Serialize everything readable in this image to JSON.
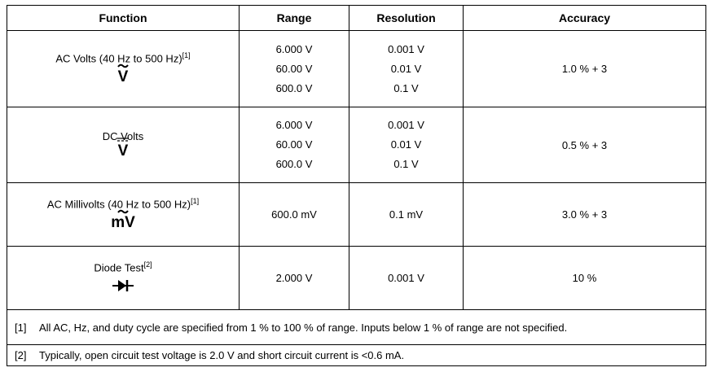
{
  "table": {
    "header": [
      "Function",
      "Range",
      "Resolution",
      "Accuracy"
    ],
    "rows": [
      {
        "function": "AC Volts (40 Hz to 500 Hz)",
        "note": "[1]",
        "symbol": "V",
        "ranges": [
          "6.000 V",
          "60.00 V",
          "600.0 V"
        ],
        "resolutions": [
          "0.001 V",
          "0.01 V",
          "0.1 V"
        ],
        "accuracy": "1.0 % + 3"
      },
      {
        "function": "DC Volts",
        "symbol": "V",
        "ranges": [
          "6.000 V",
          "60.00 V",
          "600.0 V"
        ],
        "resolutions": [
          "0.001 V",
          "0.01 V",
          "0.1 V"
        ],
        "accuracy": "0.5 % + 3"
      },
      {
        "function": "AC Millivolts (40 Hz to 500 Hz)",
        "note": "[1]",
        "symbol": "mV",
        "ranges": [
          "600.0 mV"
        ],
        "resolutions": [
          "0.1 mV"
        ],
        "accuracy": "3.0 % + 3"
      },
      {
        "function": "Diode Test",
        "note": "[2]",
        "ranges": [
          "2.000 V"
        ],
        "resolutions": [
          "0.001 V"
        ],
        "accuracy": "10 %"
      }
    ],
    "footnotes": [
      {
        "marker": "[1]",
        "text": "All AC, Hz, and duty cycle are specified from 1 % to 100 % of range. Inputs below 1 % of range are not specified."
      },
      {
        "marker": "[2]",
        "text": "Typically, open circuit test voltage is 2.0 V and short circuit current is <0.6 mA."
      }
    ]
  }
}
